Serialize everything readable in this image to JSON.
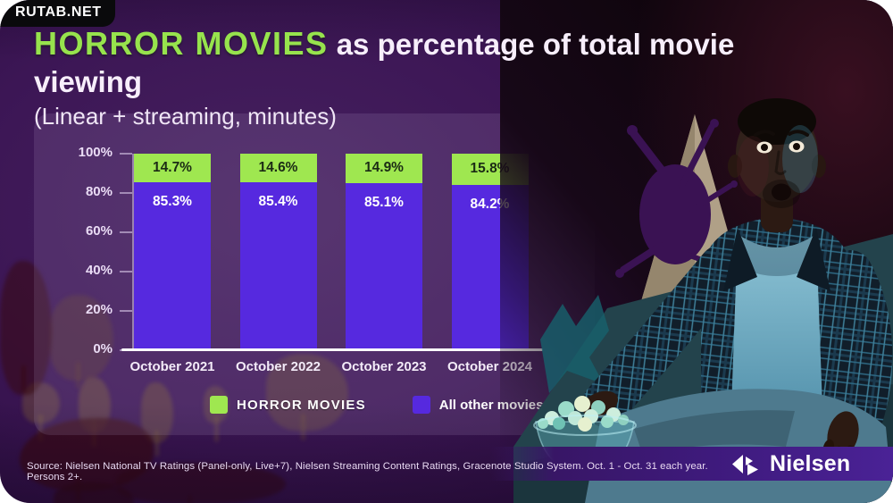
{
  "watermark": "RUTAB.NET",
  "header": {
    "title_highlight": "HORROR MOVIES",
    "title_rest": " as percentage of total movie viewing",
    "subtitle": "(Linear + streaming, minutes)"
  },
  "chart_data": {
    "type": "bar",
    "stacked": true,
    "title": "HORROR MOVIES as percentage of total movie viewing (Linear + streaming, minutes)",
    "categories": [
      "October 2021",
      "October 2022",
      "October 2023",
      "October 2024"
    ],
    "series": [
      {
        "name": "HORROR MOVIES",
        "color": "#9fe750",
        "values": [
          14.7,
          14.6,
          14.9,
          15.8
        ]
      },
      {
        "name": "All other movies",
        "color": "#5629df",
        "values": [
          85.3,
          85.4,
          85.1,
          84.2
        ]
      }
    ],
    "value_labels": {
      "horror": [
        "14.7%",
        "14.6%",
        "14.9%",
        "15.8%"
      ],
      "other": [
        "85.3%",
        "85.4%",
        "85.1%",
        "84.2%"
      ]
    },
    "ylim": [
      0,
      100
    ],
    "yticks": [
      "100%",
      "80%",
      "60%",
      "40%",
      "20%",
      "0%"
    ],
    "grid": false,
    "legend_position": "bottom",
    "legend": [
      {
        "label": "HORROR MOVIES",
        "color": "#9fe750"
      },
      {
        "label": "All other movies",
        "color": "#5629df"
      }
    ]
  },
  "footer": {
    "source": "Source: Nielsen National TV Ratings (Panel-only, Live+7), Nielsen Streaming Content Ratings, Gracenote Studio System. Oct. 1 - Oct. 31 each year. Persons 2+.",
    "brand": "Nielsen"
  },
  "colors": {
    "accent_green": "#9fe750",
    "bar_purple": "#5629df",
    "background_purple": "#3c1655",
    "brand_strip_purple": "#3e1a7c"
  }
}
